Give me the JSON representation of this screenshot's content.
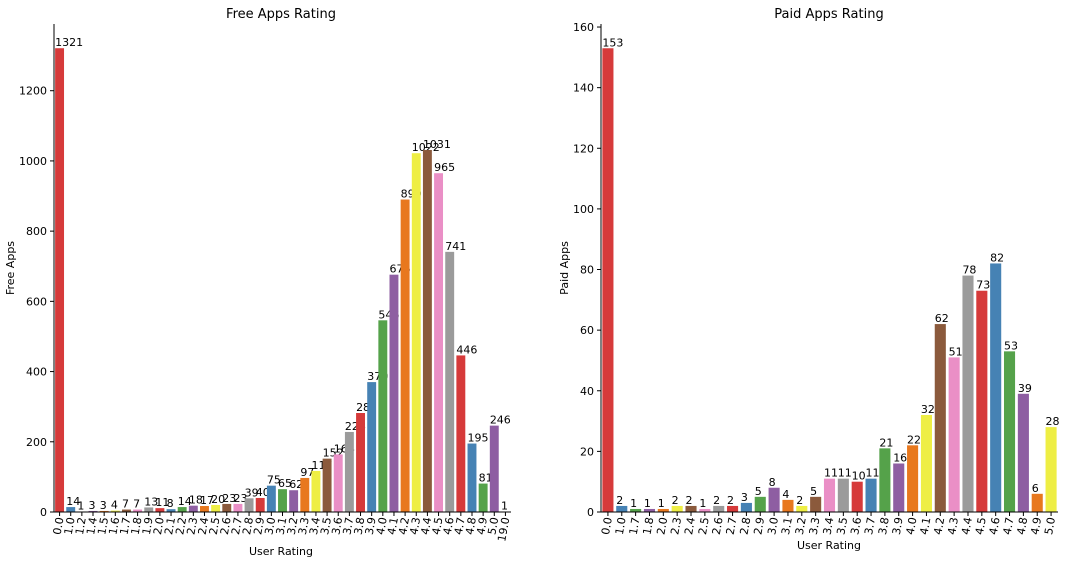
{
  "palette": [
    "#d63a3a",
    "#4682b4",
    "#55a24a",
    "#8e5ea2",
    "#e8781e",
    "#eeee44",
    "#8b5a3c",
    "#ea8fc6",
    "#9b9b9b"
  ],
  "chart_data": [
    {
      "type": "bar",
      "title": "Free Apps Rating",
      "xlabel": "User Rating",
      "ylabel": "Free Apps",
      "ylim": [
        0,
        1390
      ],
      "yticks": [
        0,
        200,
        400,
        600,
        800,
        1000,
        1200
      ],
      "grid": false,
      "legend": "none",
      "categories": [
        "0.0",
        "1.0",
        "1.2",
        "1.4",
        "1.5",
        "1.6",
        "1.7",
        "1.8",
        "1.9",
        "2.0",
        "2.1",
        "2.2",
        "2.3",
        "2.4",
        "2.5",
        "2.6",
        "2.7",
        "2.8",
        "2.9",
        "3.0",
        "3.1",
        "3.2",
        "3.3",
        "3.4",
        "3.5",
        "3.6",
        "3.7",
        "3.8",
        "3.9",
        "4.0",
        "4.1",
        "4.2",
        "4.3",
        "4.4",
        "4.5",
        "4.6",
        "4.7",
        "4.8",
        "4.9",
        "5.0",
        "19.0"
      ],
      "values": [
        1321,
        14,
        1,
        3,
        3,
        4,
        7,
        7,
        13,
        11,
        8,
        14,
        18,
        17,
        20,
        23,
        23,
        39,
        40,
        75,
        65,
        62,
        97,
        117,
        152,
        164,
        228,
        282,
        370,
        546,
        676,
        890,
        1022,
        1031,
        965,
        741,
        446,
        195,
        81,
        246,
        1
      ]
    },
    {
      "type": "bar",
      "title": "Paid Apps Rating",
      "xlabel": "User Rating",
      "ylabel": "Paid Apps",
      "ylim": [
        0,
        161
      ],
      "yticks": [
        0,
        20,
        40,
        60,
        80,
        100,
        120,
        140,
        160
      ],
      "grid": false,
      "legend": "none",
      "categories": [
        "0.0",
        "1.0",
        "1.7",
        "1.8",
        "2.0",
        "2.3",
        "2.4",
        "2.5",
        "2.6",
        "2.7",
        "2.8",
        "2.9",
        "3.0",
        "3.1",
        "3.2",
        "3.3",
        "3.4",
        "3.5",
        "3.6",
        "3.7",
        "3.8",
        "3.9",
        "4.0",
        "4.1",
        "4.2",
        "4.3",
        "4.4",
        "4.5",
        "4.6",
        "4.7",
        "4.8",
        "4.9",
        "5.0"
      ],
      "values": [
        153,
        2,
        1,
        1,
        1,
        2,
        2,
        1,
        2,
        2,
        3,
        5,
        8,
        4,
        2,
        5,
        11,
        11,
        10,
        11,
        21,
        16,
        22,
        32,
        62,
        51,
        78,
        73,
        82,
        53,
        39,
        6,
        28
      ]
    }
  ]
}
